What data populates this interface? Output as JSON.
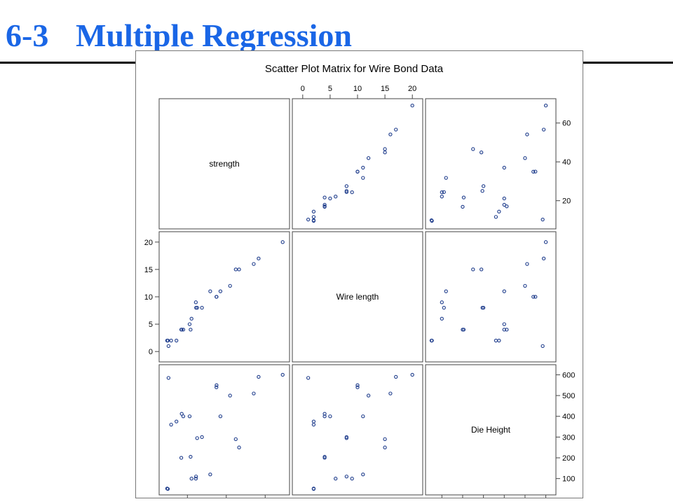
{
  "slide": {
    "title_number": "6-3",
    "title_text": "Multiple Regression"
  },
  "chart_data": {
    "type": "scatter",
    "title": "Scatter Plot Matrix for Wire Bond Data",
    "variables": [
      "strength",
      "Wire length",
      "Die Height"
    ],
    "axes": {
      "strength": {
        "range": [
          8,
          70
        ],
        "ticks": [
          20,
          40,
          60
        ]
      },
      "Wire length": {
        "range": [
          -1,
          21
        ],
        "ticks": [
          0,
          5,
          10,
          15,
          20
        ]
      },
      "Die Height": {
        "range": [
          45,
          625
        ],
        "ticks": [
          100,
          200,
          300,
          400,
          500,
          600
        ]
      }
    },
    "observations": [
      {
        "strength": 9.95,
        "Wire length": 2,
        "Die Height": 50
      },
      {
        "strength": 24.45,
        "Wire length": 8,
        "Die Height": 110
      },
      {
        "strength": 31.75,
        "Wire length": 11,
        "Die Height": 120
      },
      {
        "strength": 35.0,
        "Wire length": 10,
        "Die Height": 550
      },
      {
        "strength": 25.02,
        "Wire length": 8,
        "Die Height": 295
      },
      {
        "strength": 16.86,
        "Wire length": 4,
        "Die Height": 200
      },
      {
        "strength": 14.38,
        "Wire length": 2,
        "Die Height": 375
      },
      {
        "strength": 9.6,
        "Wire length": 2,
        "Die Height": 52
      },
      {
        "strength": 24.35,
        "Wire length": 9,
        "Die Height": 100
      },
      {
        "strength": 27.5,
        "Wire length": 8,
        "Die Height": 300
      },
      {
        "strength": 17.08,
        "Wire length": 4,
        "Die Height": 412
      },
      {
        "strength": 37.0,
        "Wire length": 11,
        "Die Height": 400
      },
      {
        "strength": 41.95,
        "Wire length": 12,
        "Die Height": 500
      },
      {
        "strength": 11.66,
        "Wire length": 2,
        "Die Height": 360
      },
      {
        "strength": 21.65,
        "Wire length": 4,
        "Die Height": 205
      },
      {
        "strength": 17.89,
        "Wire length": 4,
        "Die Height": 400
      },
      {
        "strength": 69.0,
        "Wire length": 20,
        "Die Height": 600
      },
      {
        "strength": 10.3,
        "Wire length": 1,
        "Die Height": 585
      },
      {
        "strength": 34.93,
        "Wire length": 10,
        "Die Height": 540
      },
      {
        "strength": 46.59,
        "Wire length": 15,
        "Die Height": 250
      },
      {
        "strength": 44.88,
        "Wire length": 15,
        "Die Height": 290
      },
      {
        "strength": 54.12,
        "Wire length": 16,
        "Die Height": 510
      },
      {
        "strength": 56.63,
        "Wire length": 17,
        "Die Height": 590
      },
      {
        "strength": 22.13,
        "Wire length": 6,
        "Die Height": 100
      },
      {
        "strength": 21.15,
        "Wire length": 5,
        "Die Height": 400
      }
    ],
    "marker": "open-circle",
    "marker_color": "#1f3d8c",
    "frame_color": "#444444",
    "legend": "none",
    "grid": false
  }
}
